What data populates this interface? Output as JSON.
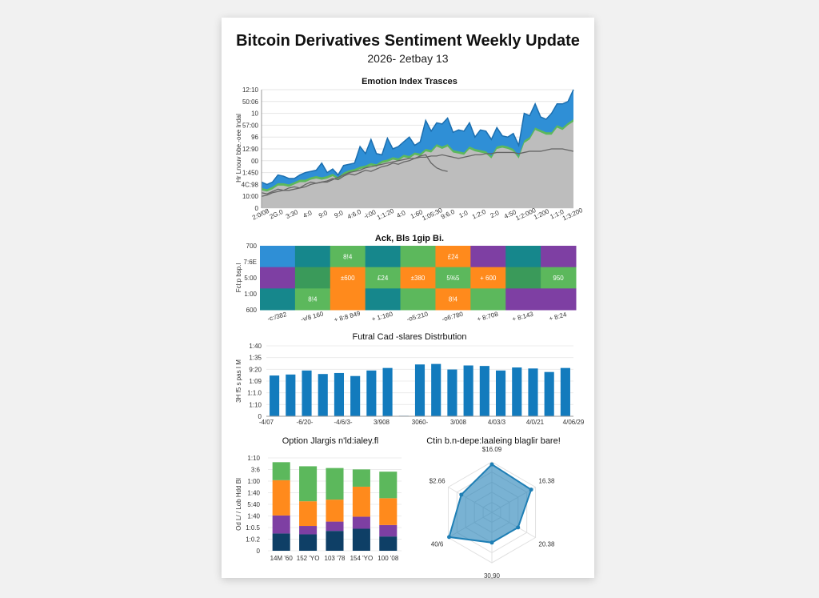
{
  "title": "Bitcoin Derivatives Sentiment Weekly Update",
  "subtitle": "2026- 2etbay 13",
  "colors": {
    "blue": "#2f8fd6",
    "green": "#5cb85c",
    "gray": "#bdbdbd",
    "teal": "#16878c",
    "orange": "#ff8a1c",
    "purple": "#7e3fa3",
    "navy": "#0e3f66",
    "darkgreen": "#3a9a5a",
    "bar": "#137bbd",
    "radar": "#1f7fb5"
  },
  "chart_data": [
    {
      "type": "area",
      "title": "Emotion Index Trasces",
      "ylabel": "Hr Lnouv bbe.-oee Indal",
      "ylim": [
        0,
        100
      ],
      "ytick_labels": [
        "0",
        "10:00",
        "4C:98",
        "1:450",
        "00",
        "12:90",
        "96",
        "57:00",
        "10",
        "50:06",
        "12:10"
      ],
      "xtick_labels": [
        "2:0/08",
        "2G.0",
        "3:30",
        "4:0",
        "9:0",
        "9:0",
        "4:6.0",
        "-i:00",
        "1:1:20",
        "4:0",
        "1:60",
        "1:05:30",
        "9:6.0",
        "1:0",
        "1:2:0",
        "2:0",
        "4:50",
        "1:2:000",
        "1:200",
        "1:1:0",
        "1:3:200"
      ],
      "series": [
        {
          "role": "top-blue",
          "values": [
            22,
            20,
            22,
            28,
            27,
            25,
            25,
            28,
            30,
            31,
            32,
            38,
            30,
            33,
            28,
            36,
            37,
            38,
            52,
            46,
            58,
            46,
            45,
            59,
            50,
            52,
            56,
            60,
            53,
            56,
            74,
            65,
            72,
            71,
            76,
            64,
            66,
            65,
            72,
            60,
            66,
            65,
            58,
            68,
            61,
            60,
            63,
            53,
            80,
            78,
            88,
            77,
            75,
            80,
            88,
            88,
            90,
            100
          ]
        },
        {
          "role": "gray-area",
          "values": [
            15,
            14,
            16,
            19,
            19,
            18,
            20,
            22,
            22,
            24,
            25,
            24,
            25,
            27,
            24,
            28,
            30,
            31,
            33,
            34,
            36,
            35,
            38,
            39,
            41,
            40,
            43,
            42,
            45,
            44,
            48,
            47,
            52,
            50,
            52,
            47,
            46,
            45,
            50,
            48,
            47,
            46,
            42,
            50,
            51,
            50,
            48,
            42,
            55,
            58,
            66,
            64,
            62,
            62,
            68,
            66,
            70,
            73
          ]
        },
        {
          "role": "line-a",
          "values": [
            10,
            11,
            13,
            14,
            15,
            15,
            16,
            17,
            18,
            20,
            21,
            22,
            22,
            24,
            26,
            28,
            30,
            31,
            32,
            34,
            35,
            36,
            37,
            38,
            39,
            40,
            41,
            42,
            42,
            43,
            43,
            44,
            44,
            45,
            44,
            43,
            42,
            43,
            44,
            45,
            45,
            46,
            46,
            47,
            47,
            47,
            47,
            46,
            47,
            48,
            48,
            48,
            49,
            50,
            50,
            50,
            49,
            48
          ]
        },
        {
          "role": "line-b",
          "values": [
            13,
            12,
            14,
            16,
            15,
            17,
            18,
            17,
            20,
            22,
            21,
            22,
            23,
            25,
            24,
            27,
            29,
            28,
            30,
            32,
            31,
            33,
            35,
            36,
            38,
            37,
            39,
            40,
            42,
            44,
            45,
            38,
            34,
            32,
            31,
            null,
            null,
            null,
            null,
            null,
            null,
            null,
            null,
            null,
            null,
            null,
            null,
            null,
            null,
            null,
            null,
            null,
            null,
            null,
            null,
            null,
            null,
            null
          ]
        }
      ]
    },
    {
      "type": "heatmap",
      "title": "Ack, Bls 1gip Bi.",
      "ylabel": "Fcl:p bsp.l",
      "ytick_labels": [
        "700",
        "7:6E",
        "5:00",
        "1:00",
        "600"
      ],
      "xtick_labels": [
        "-c:/382",
        "-v/8 160",
        "+ 8:8 849",
        "+ 1:160",
        "-o5:210",
        "-o6:780",
        "+ 8:708",
        "+ 8:143",
        "+ 8:24"
      ],
      "cells": [
        [
          "blue",
          "teal",
          "green",
          "teal",
          "green",
          "orange",
          "purple",
          "teal",
          "purple"
        ],
        [
          "purple",
          "darkgreen",
          "orange",
          "green",
          "orange",
          "green",
          "orange",
          "darkgreen",
          "green"
        ],
        [
          "teal",
          "green",
          "orange",
          "teal",
          "green",
          "orange",
          "green",
          "purple",
          "purple"
        ]
      ],
      "cell_labels": [
        [
          "",
          "",
          "8!4",
          "",
          "",
          "£24",
          "",
          "",
          ""
        ],
        [
          "",
          "",
          "±600",
          "£24",
          "±380",
          "5%5",
          "+ 600",
          "",
          "950"
        ],
        [
          "",
          "8!4",
          "",
          "",
          "",
          "8!4",
          "",
          "",
          ""
        ]
      ]
    },
    {
      "type": "bar",
      "title": "Futral Cad -slares Distrbution",
      "ylabel": "3H f5 s pas I M",
      "ylim": [
        0,
        140
      ],
      "ytick_labels": [
        "0",
        "1:10",
        "1:1.0",
        "1:09",
        "9:20",
        "1:35",
        "1:40"
      ],
      "xtick_labels": [
        "-4/07",
        "-6/20-",
        "-4/6/3-",
        "3/908",
        "3060-",
        "3/008",
        "4/03/3",
        "4/0/21",
        "4/06/29"
      ],
      "values": [
        81,
        83,
        91,
        84,
        86,
        80,
        91,
        96,
        1,
        103,
        104,
        93,
        101,
        100,
        91,
        97,
        95,
        88,
        96
      ]
    },
    {
      "type": "bar",
      "stacked": true,
      "title": "Option Jlargis n'ld:ialey.fl",
      "ylabel": "Od L/ / Lob Hdd Bl",
      "ylim": [
        0,
        100
      ],
      "ytick_labels": [
        "0",
        "1:0.2",
        "1:0.5",
        "1:40",
        "5:40",
        "1:40",
        "1:00",
        "3:6",
        "1:10"
      ],
      "categories": [
        "14M '60",
        "152 'YO",
        "103 '78",
        "154 'YO",
        "100 '08"
      ],
      "series": [
        {
          "color": "navy",
          "values": [
            18.6,
            17.7,
            21.4,
            23.7,
            15.4
          ]
        },
        {
          "color": "purple",
          "values": [
            19.4,
            9,
            10,
            13,
            12.3
          ]
        },
        {
          "color": "orange",
          "values": [
            38,
            26.6,
            23.7,
            32.3,
            28.9
          ]
        },
        {
          "color": "green",
          "values": [
            19.4,
            37.7,
            34,
            18.6,
            28.6
          ]
        }
      ]
    },
    {
      "type": "radar",
      "title": "Ctin b.n-depe:laaleing blaglir bare!",
      "axes": [
        "$16.09",
        "16.38",
        "20.38",
        "30,90",
        "40/6",
        "$2.66"
      ],
      "values": [
        0.95,
        0.9,
        0.6,
        0.6,
        0.98,
        0.7
      ]
    }
  ]
}
